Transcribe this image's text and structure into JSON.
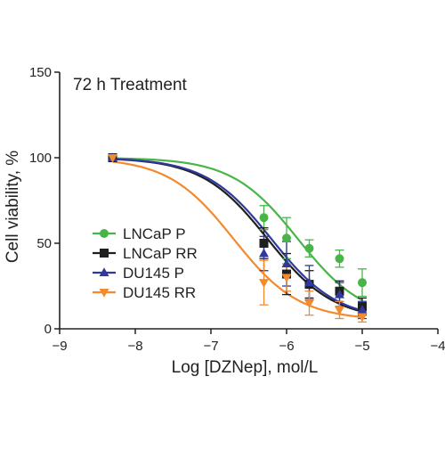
{
  "chart_data": {
    "type": "scatter",
    "title": "72 h Treatment",
    "xlabel": "Log [DZNep], mol/L",
    "ylabel": "Cell viability, %",
    "xlim": [
      -9,
      -4
    ],
    "ylim": [
      0,
      150
    ],
    "x_ticks": [
      -9,
      -8,
      -7,
      -6,
      -5,
      -4
    ],
    "x_tick_labels": [
      "−9",
      "−8",
      "−7",
      "−6",
      "−5",
      "−4"
    ],
    "y_ticks": [
      0,
      50,
      100,
      150
    ],
    "y_tick_labels": [
      "0",
      "50",
      "100",
      "150"
    ],
    "grid": false,
    "legend_position": "center-left",
    "series": [
      {
        "name": "LNCaP P",
        "color": "#48b548",
        "marker": "circle",
        "x": [
          -8.3,
          -6.3,
          -6.0,
          -5.7,
          -5.3,
          -5.0
        ],
        "y": [
          100,
          65,
          53,
          47,
          41,
          27
        ],
        "err": [
          1,
          7,
          12,
          5,
          5,
          8
        ],
        "fit": {
          "bottom": 5,
          "top": 100,
          "log_ic50": -5.85,
          "hill": 1.0
        }
      },
      {
        "name": "LNCaP RR",
        "color": "#1f1f1f",
        "marker": "square",
        "x": [
          -8.3,
          -6.3,
          -6.0,
          -5.7,
          -5.3,
          -5.0
        ],
        "y": [
          100,
          50,
          32,
          26,
          22,
          13
        ],
        "err": [
          1,
          9,
          12,
          8,
          6,
          5
        ],
        "fit": {
          "bottom": 5,
          "top": 100,
          "log_ic50": -6.25,
          "hill": 1.0
        }
      },
      {
        "name": "DU145 P",
        "color": "#2e3a9e",
        "marker": "triangle-up",
        "x": [
          -8.3,
          -6.3,
          -6.0,
          -5.7,
          -5.3,
          -5.0
        ],
        "y": [
          100,
          44,
          38,
          27,
          20,
          11
        ],
        "err": [
          1,
          10,
          13,
          10,
          7,
          5
        ],
        "fit": {
          "bottom": 5,
          "top": 100,
          "log_ic50": -6.2,
          "hill": 1.0
        }
      },
      {
        "name": "DU145 RR",
        "color": "#f28a2e",
        "marker": "triangle-down",
        "x": [
          -8.3,
          -6.3,
          -6.0,
          -5.7,
          -5.3,
          -5.0
        ],
        "y": [
          100,
          27,
          30,
          15,
          11,
          7
        ],
        "err": [
          1,
          13,
          8,
          7,
          5,
          3
        ],
        "fit": {
          "bottom": 5,
          "top": 100,
          "log_ic50": -6.7,
          "hill": 1.0
        }
      }
    ]
  }
}
